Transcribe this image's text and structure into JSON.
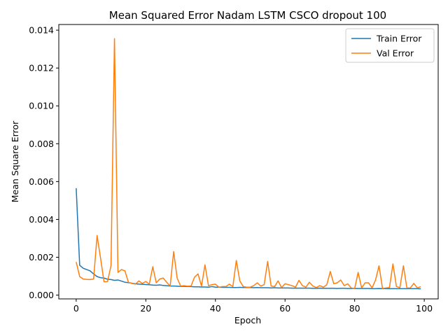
{
  "chart_data": {
    "type": "line",
    "title": "Mean Squared Error  Nadam LSTM CSCO dropout 100",
    "xlabel": "Epoch",
    "ylabel": "Mean Square Error",
    "xlim": [
      -5,
      104
    ],
    "ylim": [
      -0.0002,
      0.0143
    ],
    "xticks": [
      0,
      20,
      40,
      60,
      80,
      100
    ],
    "xtick_labels": [
      "0",
      "20",
      "40",
      "60",
      "80",
      "100"
    ],
    "yticks": [
      0,
      0.002,
      0.004,
      0.006,
      0.008,
      0.01,
      0.012,
      0.014
    ],
    "ytick_labels": [
      "0.000",
      "0.002",
      "0.004",
      "0.006",
      "0.008",
      "0.010",
      "0.012",
      "0.014"
    ],
    "grid": false,
    "legend_position": "top-right",
    "x": [
      0,
      1,
      2,
      3,
      4,
      5,
      6,
      7,
      8,
      9,
      10,
      11,
      12,
      13,
      14,
      15,
      16,
      17,
      18,
      19,
      20,
      21,
      22,
      23,
      24,
      25,
      26,
      27,
      28,
      29,
      30,
      31,
      32,
      33,
      34,
      35,
      36,
      37,
      38,
      39,
      40,
      41,
      42,
      43,
      44,
      45,
      46,
      47,
      48,
      49,
      50,
      51,
      52,
      53,
      54,
      55,
      56,
      57,
      58,
      59,
      60,
      61,
      62,
      63,
      64,
      65,
      66,
      67,
      68,
      69,
      70,
      71,
      72,
      73,
      74,
      75,
      76,
      77,
      78,
      79,
      80,
      81,
      82,
      83,
      84,
      85,
      86,
      87,
      88,
      89,
      90,
      91,
      92,
      93,
      94,
      95,
      96,
      97,
      98,
      99
    ],
    "series": [
      {
        "name": "Train Error",
        "color": "#1f77b4",
        "values": [
          0.00565,
          0.00158,
          0.00142,
          0.00135,
          0.00128,
          0.00112,
          0.00098,
          0.00092,
          0.0009,
          0.00084,
          0.00082,
          0.00078,
          0.0008,
          0.00074,
          0.00068,
          0.00066,
          0.00063,
          0.0006,
          0.00058,
          0.00057,
          0.00056,
          0.00055,
          0.00053,
          0.00052,
          0.00054,
          0.00051,
          0.0005,
          0.00048,
          0.00048,
          0.00047,
          0.00046,
          0.00046,
          0.00045,
          0.00045,
          0.00044,
          0.00044,
          0.00043,
          0.00043,
          0.00042,
          0.00045,
          0.00042,
          0.00042,
          0.00041,
          0.00041,
          0.00041,
          0.0004,
          0.0004,
          0.00041,
          0.0004,
          0.0004,
          0.0004,
          0.00039,
          0.0004,
          0.00039,
          0.00039,
          0.00039,
          0.00038,
          0.00039,
          0.00038,
          0.00038,
          0.00038,
          0.00038,
          0.00037,
          0.00037,
          0.00037,
          0.00037,
          0.00037,
          0.00037,
          0.00036,
          0.00036,
          0.00037,
          0.00036,
          0.00036,
          0.00036,
          0.00036,
          0.00035,
          0.00036,
          0.00036,
          0.00035,
          0.00035,
          0.00035,
          0.00035,
          0.00035,
          0.00035,
          0.00035,
          0.00034,
          0.00034,
          0.00035,
          0.00034,
          0.00034,
          0.00034,
          0.00034,
          0.00034,
          0.00034,
          0.00034,
          0.00034,
          0.00034,
          0.00034,
          0.00034,
          0.00033
        ]
      },
      {
        "name": "Val Error",
        "color": "#ff7f0e",
        "values": [
          0.00175,
          0.00098,
          0.00085,
          0.00083,
          0.00082,
          0.00085,
          0.00315,
          0.00195,
          0.0007,
          0.00072,
          0.00155,
          0.01355,
          0.0012,
          0.00135,
          0.00128,
          0.00068,
          0.00062,
          0.00058,
          0.00075,
          0.00062,
          0.00072,
          0.00058,
          0.0015,
          0.00065,
          0.00085,
          0.0009,
          0.00068,
          0.00048,
          0.0023,
          0.0009,
          0.00048,
          0.0005,
          0.00047,
          0.00048,
          0.00095,
          0.00112,
          0.00048,
          0.0016,
          0.0005,
          0.00055,
          0.00058,
          0.00042,
          0.00045,
          0.00045,
          0.00058,
          0.00045,
          0.00183,
          0.00075,
          0.00045,
          0.00042,
          0.00042,
          0.0005,
          0.00065,
          0.00048,
          0.00055,
          0.00178,
          0.00048,
          0.00045,
          0.00075,
          0.0004,
          0.0006,
          0.00055,
          0.0005,
          0.00042,
          0.00078,
          0.0005,
          0.00042,
          0.00068,
          0.00048,
          0.0004,
          0.0005,
          0.00042,
          0.00055,
          0.00125,
          0.0006,
          0.00065,
          0.0008,
          0.0005,
          0.0006,
          0.00038,
          0.00035,
          0.0012,
          0.00038,
          0.00065,
          0.00065,
          0.00038,
          0.0008,
          0.00155,
          0.00035,
          0.00038,
          0.0004,
          0.00165,
          0.00045,
          0.0004,
          0.00155,
          0.00038,
          0.00038,
          0.00062,
          0.00038,
          0.00045
        ]
      }
    ]
  }
}
